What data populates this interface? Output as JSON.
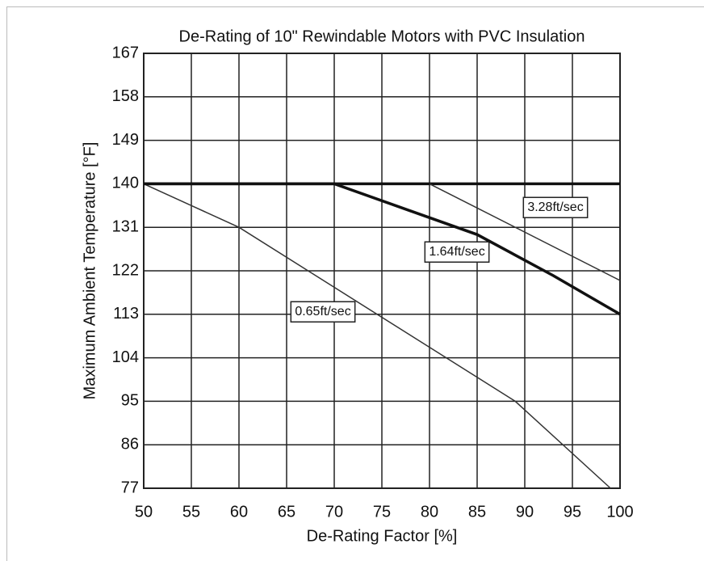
{
  "chart_data": {
    "type": "line",
    "title": "De-Rating of 10\" Rewindable Motors with PVC Insulation",
    "xlabel": "De-Rating Factor [%]",
    "ylabel": "Maximum Ambient Temperature [°F]",
    "xlim": [
      50,
      100
    ],
    "xticks": [
      50,
      55,
      60,
      65,
      70,
      75,
      80,
      85,
      90,
      95,
      100
    ],
    "ylim": [
      77,
      167
    ],
    "yticks": [
      77,
      86,
      95,
      104,
      113,
      122,
      131,
      140,
      149,
      158,
      167
    ],
    "grid": true,
    "limit": 140,
    "series": [
      {
        "name": "0.65ft/sec",
        "color": "#333333",
        "width": 1.5,
        "x": [
          50,
          60,
          89,
          99
        ],
        "values": [
          140,
          131,
          95,
          77
        ]
      },
      {
        "name": "1.64ft/sec",
        "color": "#111111",
        "width": 3.5,
        "x": [
          50,
          70,
          85,
          93,
          100
        ],
        "values": [
          140,
          140,
          129.5,
          121,
          113
        ]
      },
      {
        "name": "3.28ft/sec",
        "color": "#333333",
        "width": 1.5,
        "x": [
          80,
          100
        ],
        "values": [
          140,
          120
        ]
      }
    ]
  }
}
